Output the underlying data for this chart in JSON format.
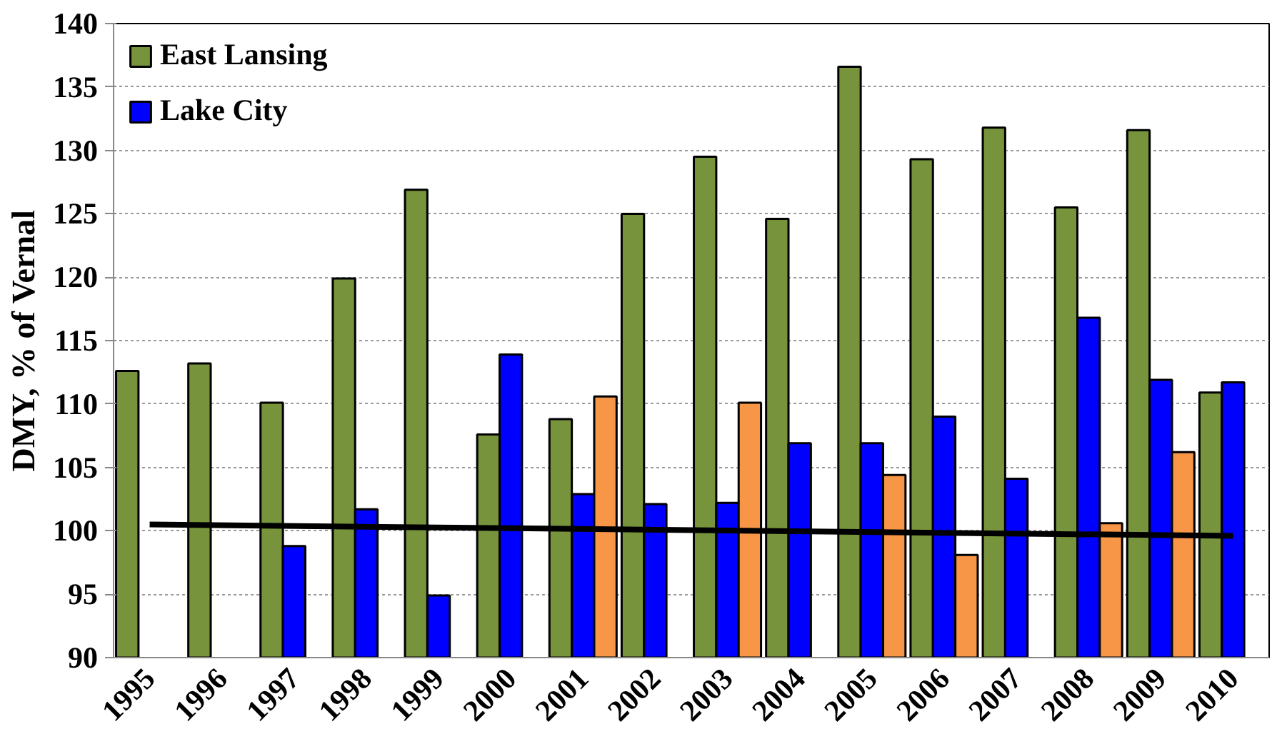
{
  "chart_data": {
    "type": "bar",
    "ylabel": "DMY, % of Vernal",
    "categories": [
      "1995",
      "1996",
      "1997",
      "1998",
      "1999",
      "2000",
      "2001",
      "2002",
      "2003",
      "2004",
      "2005",
      "2006",
      "2007",
      "2008",
      "2009",
      "2010"
    ],
    "series": [
      {
        "name": "East Lansing",
        "color": "#77933c",
        "values": [
          112.6,
          113.2,
          110.1,
          119.9,
          126.9,
          107.6,
          108.8,
          125.0,
          129.5,
          124.6,
          136.6,
          129.3,
          131.8,
          125.5,
          131.6,
          110.9
        ]
      },
      {
        "name": "Lake City",
        "color": "#0000ff",
        "values": [
          null,
          null,
          98.8,
          101.7,
          94.9,
          113.9,
          102.9,
          102.1,
          102.2,
          106.9,
          106.9,
          109.0,
          104.1,
          116.8,
          111.9,
          111.7
        ]
      },
      {
        "color": "#f79646",
        "values": [
          null,
          null,
          null,
          null,
          null,
          null,
          110.6,
          null,
          110.1,
          null,
          104.4,
          98.1,
          null,
          100.6,
          106.2,
          null
        ]
      },
      {
        "type": "line",
        "color": "#000000",
        "values": [
          100.5,
          null,
          null,
          null,
          null,
          null,
          null,
          null,
          null,
          null,
          null,
          null,
          null,
          null,
          null,
          99.6
        ]
      }
    ],
    "ylim": [
      90,
      140
    ],
    "yticks": [
      90,
      95,
      100,
      105,
      110,
      115,
      120,
      125,
      130,
      135,
      140
    ],
    "grid": "y",
    "legend": "top left"
  }
}
